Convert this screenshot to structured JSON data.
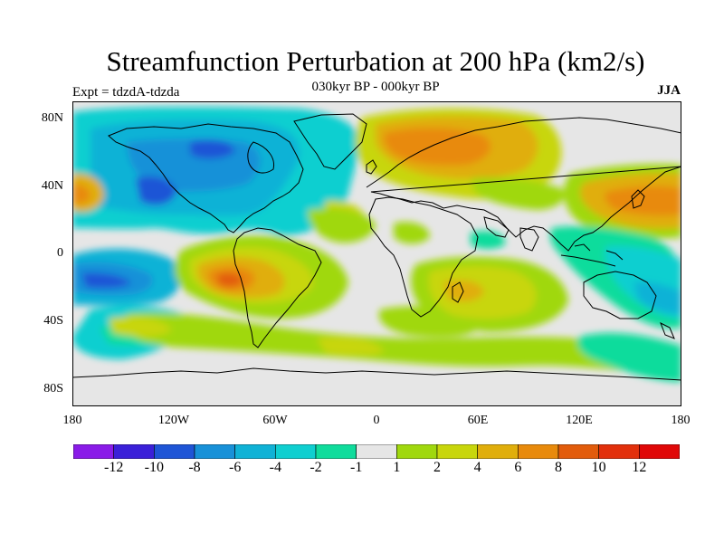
{
  "title": "Streamfunction Perturbation at 200 hPa (km2/s)",
  "subtitle": "030kyr BP - 000kyr BP",
  "experiment": "Expt = tdzdA-tdzda",
  "season": "JJA",
  "axes": {
    "lat_labels": [
      "80N",
      "40N",
      "0",
      "40S",
      "80S"
    ],
    "lon_labels": [
      "180",
      "120W",
      "60W",
      "0",
      "60E",
      "120E",
      "180"
    ]
  },
  "colorbar": {
    "colors": [
      "#8a1ce8",
      "#3b20d8",
      "#1f55d6",
      "#1891d8",
      "#10b2d6",
      "#0fcfd0",
      "#10dc9c",
      "#e6e6e6",
      "#a0d80e",
      "#c8d60c",
      "#e0ae0c",
      "#e88a0c",
      "#e25c0c",
      "#e2300c",
      "#e00808"
    ],
    "labels": [
      "-12",
      "-10",
      "-8",
      "-6",
      "-4",
      "-2",
      "-1",
      "1",
      "2",
      "4",
      "6",
      "8",
      "10",
      "12"
    ]
  }
}
